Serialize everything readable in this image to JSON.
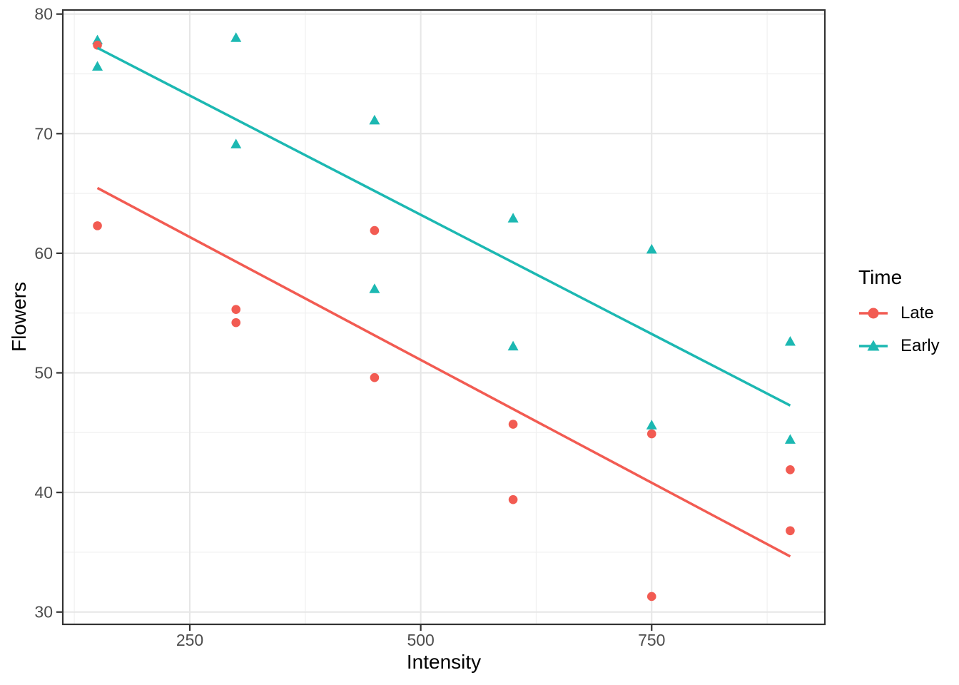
{
  "figure": {
    "background": "#FFFFFF",
    "panel_background": "#FFFFFF",
    "panel_border_color": "#333333",
    "grid_major_color": "#E6E6E6",
    "grid_minor_color": "#F0F0F0",
    "tick_color": "#333333",
    "tick_label_color": "#4D4D4D"
  },
  "chart_data": {
    "type": "scatter",
    "title": "",
    "xlabel": "Intensity",
    "ylabel": "Flowers",
    "xlim": [
      112.5,
      937.5
    ],
    "ylim": [
      28.97,
      80.34
    ],
    "x_ticks": [
      250,
      500,
      750
    ],
    "y_ticks": [
      30,
      40,
      50,
      60,
      70,
      80
    ],
    "x_minor_ticks": [
      125,
      375,
      625,
      875
    ],
    "y_minor_ticks": [
      35,
      45,
      55,
      65,
      75
    ],
    "grid": true,
    "legend": {
      "title": "Time",
      "position": "right",
      "items": [
        {
          "label": "Late",
          "marker": "circle",
          "color": "#F25B52"
        },
        {
          "label": "Early",
          "marker": "triangle",
          "color": "#1CB8B2"
        }
      ]
    },
    "series": [
      {
        "name": "Late",
        "marker": "circle",
        "color": "#F25B52",
        "points": [
          [
            150,
            62.3
          ],
          [
            150,
            77.4
          ],
          [
            300,
            55.3
          ],
          [
            300,
            54.2
          ],
          [
            450,
            49.6
          ],
          [
            450,
            61.9
          ],
          [
            600,
            39.4
          ],
          [
            600,
            45.7
          ],
          [
            750,
            31.3
          ],
          [
            750,
            44.9
          ],
          [
            900,
            36.8
          ],
          [
            900,
            41.9
          ]
        ],
        "fit_line": {
          "x": [
            150,
            900
          ],
          "y": [
            65.46,
            34.65
          ]
        }
      },
      {
        "name": "Early",
        "marker": "triangle",
        "color": "#1CB8B2",
        "points": [
          [
            150,
            77.8
          ],
          [
            150,
            75.6
          ],
          [
            300,
            69.1
          ],
          [
            300,
            78.0
          ],
          [
            450,
            57.0
          ],
          [
            450,
            71.1
          ],
          [
            600,
            62.9
          ],
          [
            600,
            52.2
          ],
          [
            750,
            60.3
          ],
          [
            750,
            45.6
          ],
          [
            900,
            52.6
          ],
          [
            900,
            44.4
          ]
        ],
        "fit_line": {
          "x": [
            150,
            900
          ],
          "y": [
            77.17,
            47.27
          ]
        }
      }
    ]
  }
}
